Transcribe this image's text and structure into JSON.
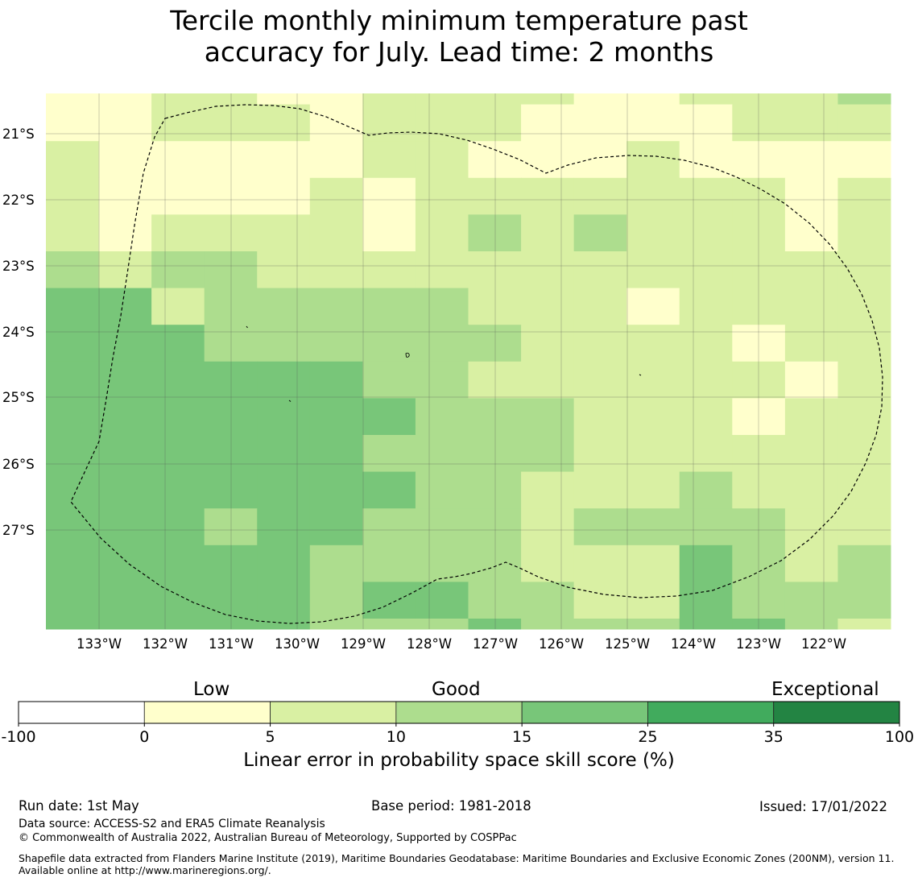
{
  "title_line1": "Tercile monthly minimum temperature past",
  "title_line2": "accuracy for July. Lead time: 2 months",
  "map": {
    "lat_labels": [
      "21°S",
      "22°S",
      "23°S",
      "24°S",
      "25°S",
      "26°S",
      "27°S"
    ],
    "lon_labels": [
      "133°W",
      "132°W",
      "131°W",
      "130°W",
      "129°W",
      "128°W",
      "127°W",
      "126°W",
      "125°W",
      "124°W",
      "123°W",
      "122°W"
    ],
    "color_classes": [
      "#ffffff",
      "#ffffcc",
      "#d9f0a3",
      "#addd8e",
      "#78c679",
      "#41ab5d",
      "#238443"
    ],
    "grid_classes_note": "",
    "grid": [
      [
        1,
        1,
        2,
        2,
        1,
        1,
        2,
        2,
        2,
        2,
        1,
        1,
        2,
        2,
        2,
        3
      ],
      [
        1,
        1,
        2,
        2,
        2,
        1,
        2,
        2,
        2,
        1,
        1,
        1,
        1,
        2,
        2,
        2
      ],
      [
        2,
        1,
        1,
        1,
        1,
        1,
        2,
        2,
        1,
        1,
        1,
        2,
        1,
        1,
        1,
        1
      ],
      [
        2,
        1,
        1,
        1,
        1,
        2,
        1,
        2,
        2,
        2,
        2,
        2,
        2,
        2,
        1,
        2
      ],
      [
        2,
        1,
        2,
        2,
        2,
        2,
        1,
        2,
        3,
        2,
        3,
        2,
        2,
        2,
        1,
        2
      ],
      [
        3,
        2,
        3,
        3,
        2,
        2,
        2,
        2,
        2,
        2,
        2,
        2,
        2,
        2,
        2,
        2
      ],
      [
        4,
        4,
        2,
        3,
        3,
        3,
        3,
        3,
        2,
        2,
        2,
        1,
        2,
        2,
        2,
        2
      ],
      [
        4,
        4,
        4,
        3,
        3,
        3,
        3,
        3,
        3,
        2,
        2,
        2,
        2,
        1,
        2,
        2
      ],
      [
        4,
        4,
        4,
        4,
        4,
        4,
        3,
        3,
        2,
        2,
        2,
        2,
        2,
        2,
        1,
        2
      ],
      [
        4,
        4,
        4,
        4,
        4,
        4,
        4,
        3,
        3,
        3,
        2,
        2,
        2,
        1,
        2,
        2
      ],
      [
        4,
        4,
        4,
        4,
        4,
        4,
        3,
        3,
        3,
        3,
        2,
        2,
        2,
        2,
        2,
        2
      ],
      [
        4,
        4,
        4,
        4,
        4,
        4,
        4,
        3,
        3,
        2,
        2,
        2,
        3,
        2,
        2,
        2
      ],
      [
        4,
        4,
        4,
        3,
        4,
        4,
        3,
        3,
        3,
        2,
        3,
        3,
        3,
        3,
        2,
        2
      ],
      [
        4,
        4,
        4,
        4,
        4,
        3,
        3,
        3,
        3,
        2,
        2,
        2,
        4,
        3,
        2,
        3
      ],
      [
        4,
        4,
        4,
        4,
        4,
        3,
        4,
        4,
        3,
        3,
        2,
        2,
        4,
        3,
        3,
        3
      ],
      [
        4,
        4,
        4,
        4,
        4,
        3,
        3,
        3,
        4,
        3,
        3,
        3,
        4,
        4,
        3,
        2
      ]
    ]
  },
  "colorbar": {
    "category_low": "Low",
    "category_good": "Good",
    "category_exceptional": "Exceptional",
    "ticks": [
      "-100",
      "0",
      "5",
      "10",
      "15",
      "25",
      "35",
      "100"
    ],
    "colors": [
      "#ffffff",
      "#ffffcc",
      "#d9f0a3",
      "#addd8e",
      "#78c679",
      "#41ab5d",
      "#238443"
    ],
    "label": "Linear error in probability space skill score (%)"
  },
  "footer": {
    "run_date": "Run date: 1st May",
    "base_period": "Base period: 1981-2018",
    "issued": "Issued: 17/01/2022",
    "data_source": "Data source: ACCESS-S2 and ERA5 Climate Reanalysis",
    "copyright": "© Commonwealth of Australia 2022, Australian Bureau of Meteorology, Supported by COSPPac",
    "shapefile": "Shapefile data extracted from Flanders Marine Institute (2019), Maritime Boundaries Geodatabase: Maritime Boundaries and Exclusive Economic Zones (200NM), version 11. Available online at http://www.marineregions.org/."
  }
}
